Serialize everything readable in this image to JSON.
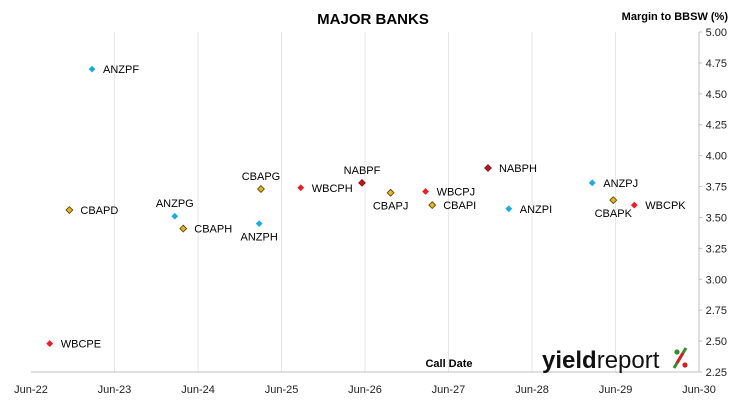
{
  "colors": {
    "background": "#ffffff",
    "grid": "#e6e6e6",
    "ANZ": "#1fa9e1",
    "CBA": "#e5b624",
    "NAB": "#c0161b",
    "WBC": "#ee1c24",
    "logo_percent_top": "#3a8a2e",
    "logo_percent_bottom": "#d22027"
  },
  "logo": {
    "text_bold": "yield",
    "text_light": "report",
    "symbol": "%",
    "icon": "percent-sign-icon"
  },
  "chart_data": {
    "type": "scatter",
    "title": "MAJOR BANKS",
    "xlabel": "Call Date",
    "ylabel": "Margin to BBSW (%)",
    "x_axis": {
      "type": "date",
      "range": [
        "2022-06-30",
        "2030-06-30"
      ],
      "ticks": [
        "2022-06-30",
        "2023-06-30",
        "2024-06-30",
        "2025-06-30",
        "2026-06-30",
        "2027-06-30",
        "2028-06-30",
        "2029-06-30",
        "2030-06-30"
      ],
      "tick_labels": [
        "Jun-22",
        "Jun-23",
        "Jun-24",
        "Jun-25",
        "Jun-26",
        "Jun-27",
        "Jun-28",
        "Jun-29",
        "Jun-30"
      ]
    },
    "y_axis": {
      "range": [
        2.25,
        5.0
      ],
      "ticks": [
        2.25,
        2.5,
        2.75,
        3.0,
        3.25,
        3.5,
        3.75,
        4.0,
        4.25,
        4.5,
        4.75,
        5.0
      ],
      "tick_labels": [
        "2.25",
        "2.50",
        "2.75",
        "3.00",
        "3.25",
        "3.50",
        "3.75",
        "4.00",
        "4.25",
        "4.50",
        "4.75",
        "5.00"
      ],
      "position": "right"
    },
    "grid": "vertical",
    "points": [
      {
        "label": "WBCPE",
        "bank": "WBC",
        "x": "2022-09-20",
        "y": 2.48,
        "label_pos": "right"
      },
      {
        "label": "CBAPD",
        "bank": "CBA",
        "x": "2022-12-15",
        "y": 3.56,
        "label_pos": "right"
      },
      {
        "label": "ANZPF",
        "bank": "ANZ",
        "x": "2023-03-24",
        "y": 4.7,
        "label_pos": "right"
      },
      {
        "label": "ANZPG",
        "bank": "ANZ",
        "x": "2024-03-20",
        "y": 3.51,
        "label_pos": "above"
      },
      {
        "label": "CBAPH",
        "bank": "CBA",
        "x": "2024-04-26",
        "y": 3.41,
        "label_pos": "right"
      },
      {
        "label": "ANZPH",
        "bank": "ANZ",
        "x": "2025-03-24",
        "y": 3.45,
        "label_pos": "below"
      },
      {
        "label": "CBAPG",
        "bank": "CBA",
        "x": "2025-04-01",
        "y": 3.73,
        "label_pos": "above"
      },
      {
        "label": "WBCPH",
        "bank": "WBC",
        "x": "2025-09-22",
        "y": 3.74,
        "label_pos": "right"
      },
      {
        "label": "NABPF",
        "bank": "NAB",
        "x": "2026-06-17",
        "y": 3.78,
        "label_pos": "above"
      },
      {
        "label": "CBAPJ",
        "bank": "CBA",
        "x": "2026-10-20",
        "y": 3.7,
        "label_pos": "below"
      },
      {
        "label": "WBCPJ",
        "bank": "WBC",
        "x": "2027-03-22",
        "y": 3.71,
        "label_pos": "right"
      },
      {
        "label": "CBAPI",
        "bank": "CBA",
        "x": "2027-04-20",
        "y": 3.6,
        "label_pos": "right"
      },
      {
        "label": "NABPH",
        "bank": "NAB",
        "x": "2027-12-20",
        "y": 3.9,
        "label_pos": "right"
      },
      {
        "label": "ANZPI",
        "bank": "ANZ",
        "x": "2028-03-20",
        "y": 3.57,
        "label_pos": "right"
      },
      {
        "label": "ANZPJ",
        "bank": "ANZ",
        "x": "2029-03-20",
        "y": 3.78,
        "label_pos": "right"
      },
      {
        "label": "CBAPK",
        "bank": "CBA",
        "x": "2029-06-20",
        "y": 3.64,
        "label_pos": "below"
      },
      {
        "label": "WBCPK",
        "bank": "WBC",
        "x": "2029-09-20",
        "y": 3.6,
        "label_pos": "right"
      }
    ]
  }
}
